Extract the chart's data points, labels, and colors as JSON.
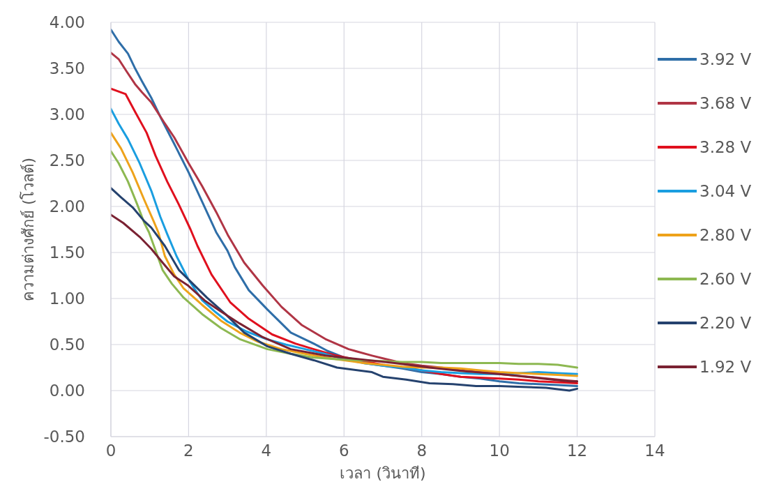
{
  "chart_data": {
    "type": "line",
    "xlabel": "เวลา (วินาที)",
    "ylabel": "ความต่างศักย์ (โวลต์)",
    "xlim": [
      0,
      14
    ],
    "xticks": [
      0,
      2,
      4,
      6,
      8,
      10,
      12,
      14
    ],
    "ylim": [
      -0.5,
      4
    ],
    "yticks": [
      {
        "value": -0.5,
        "label": "-0.50"
      },
      {
        "value": 0,
        "label": "0.00"
      },
      {
        "value": 0.5,
        "label": "0.50"
      },
      {
        "value": 1,
        "label": "1.00"
      },
      {
        "value": 1.5,
        "label": "1.50"
      },
      {
        "value": 2,
        "label": "2.00"
      },
      {
        "value": 2.5,
        "label": "2.50"
      },
      {
        "value": 3,
        "label": "3.00"
      },
      {
        "value": 3.5,
        "label": "3.50"
      },
      {
        "value": 4,
        "label": "4.00"
      }
    ],
    "grid": true,
    "legend": "right",
    "line_style": "solid",
    "series": [
      {
        "name": "3.92 V",
        "color": "#2f6ea8",
        "x": [
          0,
          0.2,
          0.44,
          0.61,
          0.8,
          1.04,
          1.3,
          1.63,
          2.0,
          2.35,
          2.71,
          3.0,
          3.19,
          3.55,
          4.03,
          4.63,
          5.22,
          5.58,
          6.0,
          6.5,
          7.0,
          7.5,
          8.0,
          8.5,
          9.0,
          9.5,
          10.0,
          10.5,
          11.0,
          11.5,
          12.0
        ],
        "values": [
          3.92,
          3.79,
          3.66,
          3.51,
          3.36,
          3.18,
          2.95,
          2.68,
          2.37,
          2.05,
          1.72,
          1.52,
          1.34,
          1.09,
          0.88,
          0.63,
          0.51,
          0.43,
          0.36,
          0.3,
          0.27,
          0.24,
          0.2,
          0.18,
          0.15,
          0.13,
          0.1,
          0.08,
          0.07,
          0.06,
          0.05
        ]
      },
      {
        "name": "3.68 V",
        "color": "#b03545",
        "x": [
          0,
          0.2,
          0.4,
          0.62,
          0.8,
          1.04,
          1.39,
          1.63,
          2.0,
          2.35,
          2.71,
          3.01,
          3.43,
          3.91,
          4.39,
          4.92,
          5.52,
          6.12,
          6.72,
          7.0,
          7.5,
          8.0,
          8.5,
          9.0,
          9.5,
          10.0,
          10.5,
          11.0,
          11.5,
          12.0
        ],
        "values": [
          3.67,
          3.6,
          3.47,
          3.33,
          3.24,
          3.13,
          2.9,
          2.75,
          2.47,
          2.22,
          1.94,
          1.69,
          1.39,
          1.14,
          0.91,
          0.71,
          0.56,
          0.45,
          0.38,
          0.35,
          0.3,
          0.27,
          0.25,
          0.22,
          0.2,
          0.18,
          0.16,
          0.14,
          0.12,
          0.1
        ]
      },
      {
        "name": "3.28 V",
        "color": "#e0101e",
        "x": [
          0,
          0.38,
          0.62,
          0.92,
          1.15,
          1.45,
          1.75,
          2.05,
          2.23,
          2.59,
          3.07,
          3.55,
          4.15,
          4.75,
          5.22,
          5.8,
          6.5,
          7.0,
          7.5,
          8.0,
          8.5,
          9.0,
          9.5,
          10.0,
          10.5,
          11.0,
          11.5,
          12.0
        ],
        "values": [
          3.28,
          3.22,
          3.03,
          2.8,
          2.55,
          2.27,
          2.02,
          1.75,
          1.57,
          1.26,
          0.96,
          0.78,
          0.61,
          0.51,
          0.45,
          0.38,
          0.32,
          0.28,
          0.25,
          0.22,
          0.18,
          0.15,
          0.14,
          0.13,
          0.12,
          0.1,
          0.09,
          0.08
        ]
      },
      {
        "name": "3.04 V",
        "color": "#1a9ee0",
        "x": [
          0,
          0.2,
          0.44,
          0.74,
          1.04,
          1.27,
          1.45,
          1.69,
          1.99,
          2.35,
          2.7,
          3.0,
          3.5,
          4.0,
          4.5,
          5.0,
          5.5,
          6.0,
          6.5,
          7.0,
          7.5,
          8.0,
          8.5,
          9.0,
          9.5,
          10.0,
          10.5,
          11.0,
          11.5,
          12.0
        ],
        "values": [
          3.06,
          2.9,
          2.73,
          2.47,
          2.17,
          1.89,
          1.7,
          1.46,
          1.21,
          0.98,
          0.85,
          0.75,
          0.64,
          0.56,
          0.5,
          0.45,
          0.4,
          0.34,
          0.3,
          0.27,
          0.25,
          0.22,
          0.2,
          0.19,
          0.18,
          0.18,
          0.19,
          0.2,
          0.19,
          0.18
        ]
      },
      {
        "name": "2.80 V",
        "color": "#eea21a",
        "x": [
          0,
          0.26,
          0.56,
          0.86,
          1.1,
          1.22,
          1.39,
          1.63,
          1.87,
          2.35,
          2.83,
          3.31,
          3.79,
          4.39,
          5.0,
          5.5,
          6.0,
          6.5,
          7.0,
          7.5,
          8.0,
          8.5,
          9.0,
          9.5,
          10.0,
          10.5,
          11.0,
          11.5,
          12.0
        ],
        "values": [
          2.8,
          2.63,
          2.37,
          2.07,
          1.84,
          1.72,
          1.46,
          1.26,
          1.11,
          0.93,
          0.76,
          0.63,
          0.53,
          0.45,
          0.4,
          0.36,
          0.33,
          0.3,
          0.28,
          0.26,
          0.25,
          0.25,
          0.24,
          0.22,
          0.2,
          0.19,
          0.18,
          0.17,
          0.16
        ]
      },
      {
        "name": "2.60 V",
        "color": "#8db851",
        "x": [
          0,
          0.2,
          0.44,
          0.68,
          0.86,
          0.98,
          1.15,
          1.33,
          1.57,
          1.87,
          2.35,
          2.83,
          3.31,
          4.03,
          4.63,
          5.2,
          5.8,
          6.4,
          7.0,
          7.5,
          8.0,
          8.5,
          9.0,
          9.5,
          10.0,
          10.5,
          11.0,
          11.5,
          12.0
        ],
        "values": [
          2.6,
          2.47,
          2.27,
          2.02,
          1.82,
          1.72,
          1.52,
          1.31,
          1.16,
          1.01,
          0.83,
          0.68,
          0.56,
          0.45,
          0.4,
          0.36,
          0.34,
          0.33,
          0.32,
          0.31,
          0.31,
          0.3,
          0.3,
          0.3,
          0.3,
          0.29,
          0.29,
          0.28,
          0.25
        ]
      },
      {
        "name": "2.20 V",
        "color": "#25426e",
        "x": [
          0,
          0.26,
          0.56,
          0.86,
          1.04,
          1.39,
          1.75,
          2.11,
          2.47,
          2.95,
          3.43,
          4.03,
          4.63,
          5.22,
          5.82,
          6.72,
          7.0,
          7.6,
          8.2,
          8.8,
          9.4,
          10.0,
          10.6,
          11.2,
          11.8,
          12.0
        ],
        "values": [
          2.2,
          2.1,
          1.99,
          1.84,
          1.77,
          1.57,
          1.31,
          1.16,
          1.01,
          0.83,
          0.63,
          0.48,
          0.4,
          0.33,
          0.25,
          0.2,
          0.15,
          0.12,
          0.08,
          0.07,
          0.05,
          0.05,
          0.04,
          0.03,
          0.0,
          0.02
        ]
      },
      {
        "name": "1.92 V",
        "color": "#7a2232",
        "x": [
          0,
          0.32,
          0.74,
          1.04,
          1.33,
          1.63,
          1.99,
          2.41,
          2.83,
          3.31,
          3.91,
          4.63,
          5.52,
          6.42,
          7.3,
          8.2,
          9.1,
          10.0,
          10.9,
          11.8,
          12.0
        ],
        "values": [
          1.91,
          1.82,
          1.67,
          1.54,
          1.39,
          1.24,
          1.14,
          0.98,
          0.86,
          0.73,
          0.58,
          0.45,
          0.38,
          0.34,
          0.3,
          0.25,
          0.21,
          0.18,
          0.14,
          0.1,
          0.1
        ]
      }
    ]
  }
}
